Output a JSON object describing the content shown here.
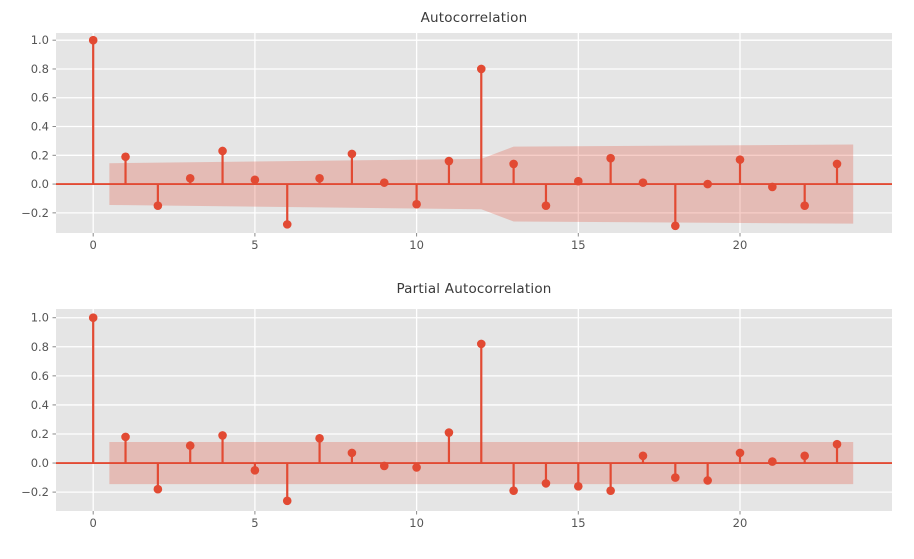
{
  "colors": {
    "figure_bg": "#ffffff",
    "axes_bg": "#E5E5E5",
    "grid": "#FFFFFF",
    "stem": "#E24A33",
    "band_fill": "rgba(226,74,51,0.27)",
    "tick_text": "#555555",
    "tick_mark": "#8a8a8a",
    "title_text": "#3a3a3a"
  },
  "chart_data": [
    {
      "type": "stem",
      "title": "Autocorrelation",
      "x": [
        0,
        1,
        2,
        3,
        4,
        5,
        6,
        7,
        8,
        9,
        10,
        11,
        12,
        13,
        14,
        15,
        16,
        17,
        18,
        19,
        20,
        21,
        22,
        23
      ],
      "values": [
        1.0,
        0.19,
        -0.15,
        0.04,
        0.23,
        0.03,
        -0.28,
        0.04,
        0.21,
        0.01,
        -0.14,
        0.16,
        0.8,
        0.14,
        -0.15,
        0.02,
        0.18,
        0.01,
        -0.29,
        0.0,
        0.17,
        -0.02,
        -0.15,
        0.14
      ],
      "conf_band": {
        "x": [
          0.5,
          12.0,
          13.0,
          23.5
        ],
        "halfwidth": [
          0.145,
          0.175,
          0.26,
          0.275
        ]
      },
      "xticks": [
        0,
        5,
        10,
        15,
        20
      ],
      "ytick_labels": [
        "1.0",
        "0.8",
        "0.6",
        "0.4",
        "0.2",
        "0.0",
        "−0.2"
      ],
      "ytick_values": [
        1.0,
        0.8,
        0.6,
        0.4,
        0.2,
        0.0,
        -0.2
      ],
      "xlim": [
        -1.15,
        24.7
      ],
      "ylim": [
        -0.34,
        1.05
      ],
      "grid": true,
      "legend": null
    },
    {
      "type": "stem",
      "title": "Partial Autocorrelation",
      "x": [
        0,
        1,
        2,
        3,
        4,
        5,
        6,
        7,
        8,
        9,
        10,
        11,
        12,
        13,
        14,
        15,
        16,
        17,
        18,
        19,
        20,
        21,
        22,
        23
      ],
      "values": [
        1.0,
        0.18,
        -0.18,
        0.12,
        0.19,
        -0.05,
        -0.26,
        0.17,
        0.07,
        -0.02,
        -0.03,
        0.21,
        0.82,
        -0.19,
        -0.14,
        -0.16,
        -0.19,
        0.05,
        -0.1,
        -0.12,
        0.07,
        0.01,
        0.05,
        0.13
      ],
      "conf_band": {
        "x": [
          0.5,
          23.5
        ],
        "halfwidth": [
          0.145,
          0.145
        ]
      },
      "xticks": [
        0,
        5,
        10,
        15,
        20
      ],
      "ytick_labels": [
        "1.0",
        "0.8",
        "0.6",
        "0.4",
        "0.2",
        "0.0",
        "−0.2"
      ],
      "ytick_values": [
        1.0,
        0.8,
        0.6,
        0.4,
        0.2,
        0.0,
        -0.2
      ],
      "xlim": [
        -1.15,
        24.7
      ],
      "ylim": [
        -0.33,
        1.06
      ],
      "grid": true,
      "legend": null
    }
  ]
}
